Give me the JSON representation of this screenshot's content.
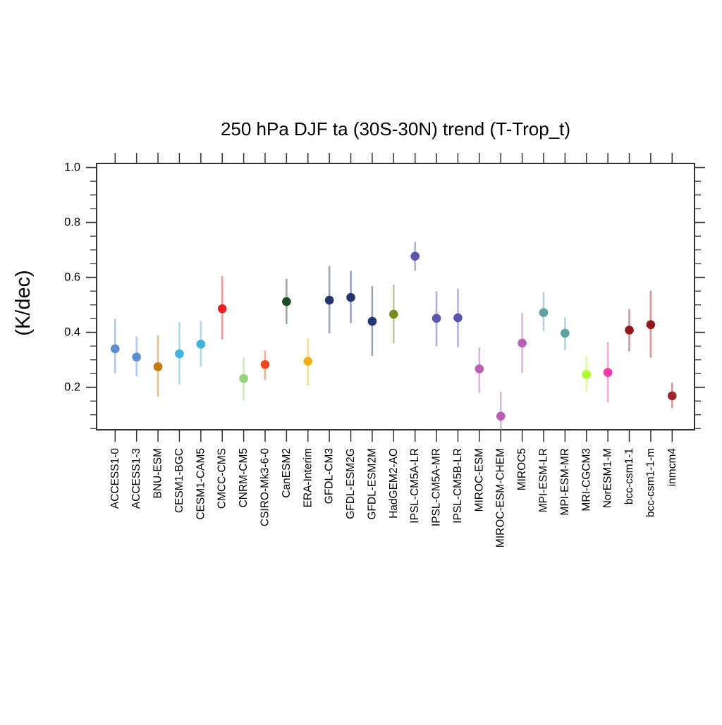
{
  "page": {
    "background": "#FFFFFF"
  },
  "chart_data": {
    "type": "scatter",
    "title": "250 hPa DJF ta (30S-30N) trend (T-Trop_t)",
    "ylabel": "(K/dec)",
    "xlabel": "",
    "ylim": [
      0.046,
      1.015
    ],
    "y_major_ticks": [
      0.2,
      0.4,
      0.6,
      0.8,
      1.0
    ],
    "y_minor_step": 0.05,
    "grid": false,
    "legend": "none",
    "axis_color": "#333333",
    "error_bar_opacity": 0.45,
    "marker_radius": 6.3,
    "points": [
      {
        "model": "ACCESS1-0",
        "value": 0.34,
        "lo": 0.25,
        "hi": 0.45,
        "color": "#5B8ED1"
      },
      {
        "model": "ACCESS1-3",
        "value": 0.31,
        "lo": 0.24,
        "hi": 0.385,
        "color": "#5B8ED1"
      },
      {
        "model": "BNU-ESM",
        "value": 0.275,
        "lo": 0.165,
        "hi": 0.39,
        "color": "#C47900"
      },
      {
        "model": "CESM1-BGC",
        "value": 0.322,
        "lo": 0.21,
        "hi": 0.438,
        "color": "#43B2D8"
      },
      {
        "model": "CESM1-CAM5",
        "value": 0.357,
        "lo": 0.275,
        "hi": 0.442,
        "color": "#43B2D8"
      },
      {
        "model": "CMCC-CMS",
        "value": 0.486,
        "lo": 0.374,
        "hi": 0.604,
        "color": "#E82023"
      },
      {
        "model": "CNRM-CM5",
        "value": 0.232,
        "lo": 0.151,
        "hi": 0.31,
        "color": "#91D67E"
      },
      {
        "model": "CSIRO-Mk3-6-0",
        "value": 0.283,
        "lo": 0.227,
        "hi": 0.334,
        "color": "#F14B20"
      },
      {
        "model": "CanESM2",
        "value": 0.512,
        "lo": 0.43,
        "hi": 0.595,
        "color": "#1E4C24"
      },
      {
        "model": "ERA-Interim",
        "value": 0.295,
        "lo": 0.206,
        "hi": 0.379,
        "color": "#F3B111"
      },
      {
        "model": "GFDL-CM3",
        "value": 0.517,
        "lo": 0.396,
        "hi": 0.642,
        "color": "#23366D"
      },
      {
        "model": "GFDL-ESM2G",
        "value": 0.527,
        "lo": 0.434,
        "hi": 0.624,
        "color": "#23366D"
      },
      {
        "model": "GFDL-ESM2M",
        "value": 0.44,
        "lo": 0.315,
        "hi": 0.568,
        "color": "#23366D"
      },
      {
        "model": "HadGEM2-AO",
        "value": 0.466,
        "lo": 0.36,
        "hi": 0.573,
        "color": "#7A8B26"
      },
      {
        "model": "IPSL-CM5A-LR",
        "value": 0.677,
        "lo": 0.624,
        "hi": 0.729,
        "color": "#5B53AE"
      },
      {
        "model": "IPSL-CM5A-MR",
        "value": 0.451,
        "lo": 0.349,
        "hi": 0.55,
        "color": "#5B53AE"
      },
      {
        "model": "IPSL-CM5B-LR",
        "value": 0.453,
        "lo": 0.346,
        "hi": 0.559,
        "color": "#5B53AE"
      },
      {
        "model": "MIROC-ESM",
        "value": 0.267,
        "lo": 0.18,
        "hi": 0.345,
        "color": "#B85FB6"
      },
      {
        "model": "MIROC-ESM-CHEM",
        "value": 0.095,
        "lo": 0.041,
        "hi": 0.184,
        "color": "#B85FB6"
      },
      {
        "model": "MIROC5",
        "value": 0.361,
        "lo": 0.252,
        "hi": 0.471,
        "color": "#B85FB6"
      },
      {
        "model": "MPI-ESM-LR",
        "value": 0.472,
        "lo": 0.405,
        "hi": 0.546,
        "color": "#5DA1A2"
      },
      {
        "model": "MPI-ESM-MR",
        "value": 0.397,
        "lo": 0.335,
        "hi": 0.455,
        "color": "#5DA1A2"
      },
      {
        "model": "MRI-CGCM3",
        "value": 0.247,
        "lo": 0.185,
        "hi": 0.312,
        "color": "#ADFF2F"
      },
      {
        "model": "NorESM1-M",
        "value": 0.254,
        "lo": 0.145,
        "hi": 0.364,
        "color": "#F13AA7"
      },
      {
        "model": "bcc-csm1-1",
        "value": 0.408,
        "lo": 0.331,
        "hi": 0.484,
        "color": "#94191E"
      },
      {
        "model": "bcc-csm1-1-m",
        "value": 0.428,
        "lo": 0.308,
        "hi": 0.551,
        "color": "#94191E"
      },
      {
        "model": "inmcm4",
        "value": 0.169,
        "lo": 0.124,
        "hi": 0.217,
        "color": "#A1252C"
      }
    ]
  }
}
